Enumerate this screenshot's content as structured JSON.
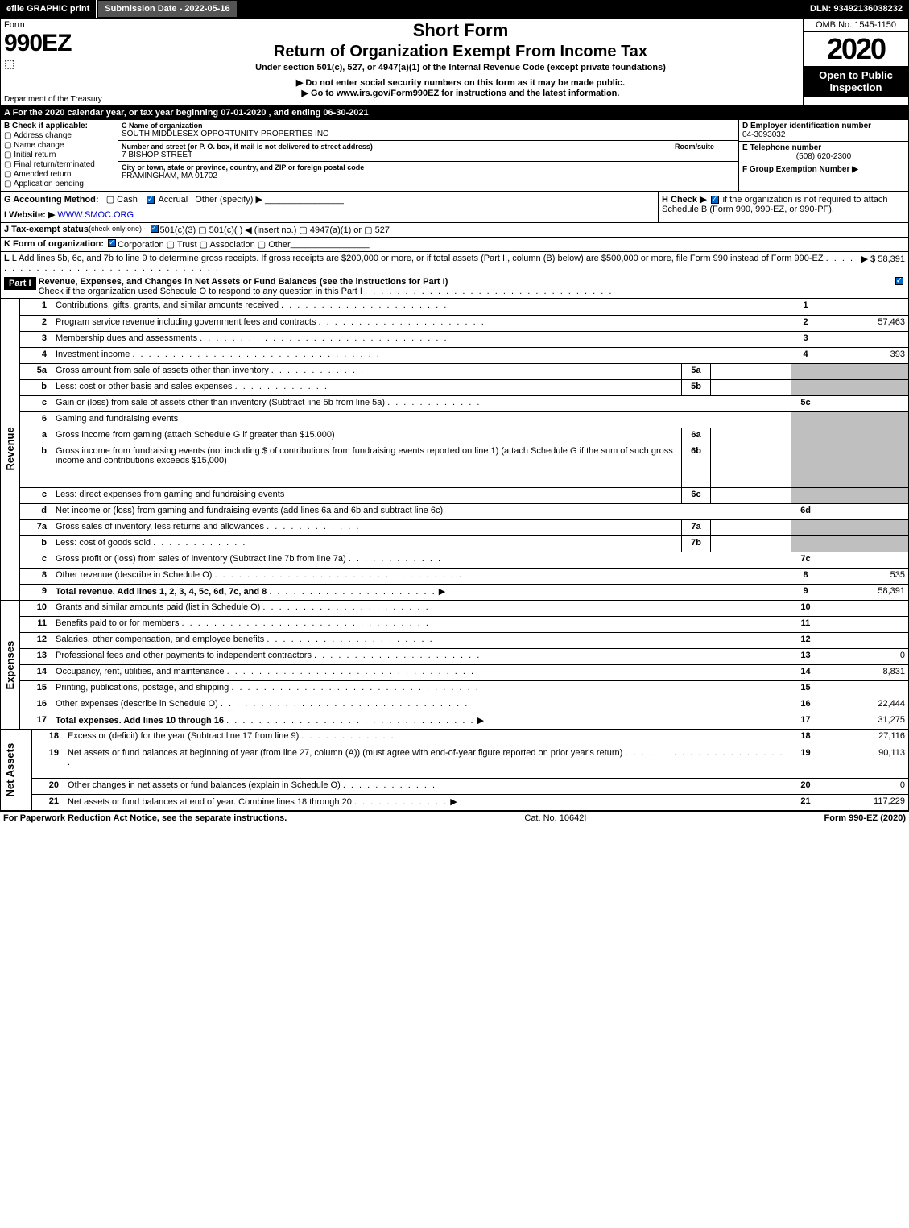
{
  "top_bar": {
    "efile": "efile GRAPHIC print",
    "sub_label": "Submission Date - 2022-05-16",
    "dln": "DLN: 93492136038232"
  },
  "header": {
    "form": "Form",
    "form_num": "990EZ",
    "dept": "Department of the Treasury",
    "irs": "Internal Revenue Service",
    "short": "Short Form",
    "return": "Return of Organization Exempt From Income Tax",
    "under": "Under section 501(c), 527, or 4947(a)(1) of the Internal Revenue Code (except private foundations)",
    "note": "▶ Do not enter social security numbers on this form as it may be made public.",
    "go": "▶ Go to www.irs.gov/Form990EZ for instructions and the latest information.",
    "omb": "OMB No. 1545-1150",
    "year": "2020",
    "open": "Open to Public Inspection"
  },
  "cal": "A For the 2020 calendar year, or tax year beginning 07-01-2020 , and ending 06-30-2021",
  "section_b": {
    "b_label": "B Check if applicable:",
    "checks": [
      "Address change",
      "Name change",
      "Initial return",
      "Final return/terminated",
      "Amended return",
      "Application pending"
    ],
    "c_label": "C Name of organization",
    "c_name": "SOUTH MIDDLESEX OPPORTUNITY PROPERTIES INC",
    "addr_label": "Number and street (or P. O. box, if mail is not delivered to street address)",
    "room_label": "Room/suite",
    "addr": "7 BISHOP STREET",
    "city_label": "City or town, state or province, country, and ZIP or foreign postal code",
    "city": "FRAMINGHAM, MA  01702",
    "d_label": "D Employer identification number",
    "d_val": "04-3093032",
    "e_label": "E Telephone number",
    "e_val": "(508) 620-2300",
    "f_label": "F Group Exemption Number  ▶"
  },
  "section_gh": {
    "g": "G Accounting Method:",
    "g_cash": "Cash",
    "g_acc": "Accrual",
    "g_other": "Other (specify) ▶",
    "h": "H Check ▶",
    "h_txt": "if the organization is not required to attach Schedule B (Form 990, 990-EZ, or 990-PF).",
    "i": "I Website: ▶",
    "i_val": "WWW.SMOC.ORG",
    "j": "J Tax-exempt status",
    "j_sub": "(check only one) -",
    "j_opts": "501(c)(3)   ▢ 501(c)(  ) ◀ (insert no.)   ▢ 4947(a)(1) or   ▢ 527",
    "k": "K Form of organization:",
    "k_opts": "Corporation   ▢ Trust   ▢ Association   ▢ Other",
    "l": "L Add lines 5b, 6c, and 7b to line 9 to determine gross receipts. If gross receipts are $200,000 or more, or if total assets (Part II, column (B) below) are $500,000 or more, file Form 990 instead of Form 990-EZ",
    "l_val": "▶ $ 58,391"
  },
  "part1": {
    "bar": "Part I",
    "title": "Revenue, Expenses, and Changes in Net Assets or Fund Balances (see the instructions for Part I)",
    "check": "Check if the organization used Schedule O to respond to any question in this Part I"
  },
  "rows": [
    {
      "n": "1",
      "d": "Contributions, gifts, grants, and similar amounts received",
      "dots": "d",
      "ln": "1",
      "v": ""
    },
    {
      "n": "2",
      "d": "Program service revenue including government fees and contracts",
      "dots": "d",
      "ln": "2",
      "v": "57,463"
    },
    {
      "n": "3",
      "d": "Membership dues and assessments",
      "dots": "m",
      "ln": "3",
      "v": ""
    },
    {
      "n": "4",
      "d": "Investment income",
      "dots": "m",
      "ln": "4",
      "v": "393"
    },
    {
      "n": "5a",
      "d": "Gross amount from sale of assets other than inventory",
      "dots": "s",
      "mini": "5a",
      "mv": ""
    },
    {
      "n": "b",
      "d": "Less: cost or other basis and sales expenses",
      "dots": "s",
      "mini": "5b",
      "mv": ""
    },
    {
      "n": "c",
      "d": "Gain or (loss) from sale of assets other than inventory (Subtract line 5b from line 5a)",
      "dots": "s",
      "ln": "5c",
      "v": ""
    },
    {
      "n": "6",
      "d": "Gaming and fundraising events",
      "plain": true
    },
    {
      "n": "a",
      "d": "Gross income from gaming (attach Schedule G if greater than $15,000)",
      "mini": "6a",
      "mv": ""
    },
    {
      "n": "b",
      "d": "Gross income from fundraising events (not including $                   of contributions from fundraising events reported on line 1) (attach Schedule G if the sum of such gross income and contributions exceeds $15,000)",
      "dots": "",
      "mini": "6b",
      "mv": "",
      "tall": true
    },
    {
      "n": "c",
      "d": "Less: direct expenses from gaming and fundraising events",
      "dots": "",
      "mini": "6c",
      "mv": ""
    },
    {
      "n": "d",
      "d": "Net income or (loss) from gaming and fundraising events (add lines 6a and 6b and subtract line 6c)",
      "ln": "6d",
      "v": ""
    },
    {
      "n": "7a",
      "d": "Gross sales of inventory, less returns and allowances",
      "dots": "s",
      "mini": "7a",
      "mv": ""
    },
    {
      "n": "b",
      "d": "Less: cost of goods sold",
      "dots": "s",
      "mini": "7b",
      "mv": ""
    },
    {
      "n": "c",
      "d": "Gross profit or (loss) from sales of inventory (Subtract line 7b from line 7a)",
      "dots": "s",
      "ln": "7c",
      "v": ""
    },
    {
      "n": "8",
      "d": "Other revenue (describe in Schedule O)",
      "dots": "m",
      "ln": "8",
      "v": "535"
    },
    {
      "n": "9",
      "d": "Total revenue. Add lines 1, 2, 3, 4, 5c, 6d, 7c, and 8",
      "dots": "d",
      "ln": "9",
      "v": "58,391",
      "bold": true,
      "arr": true
    }
  ],
  "exp_rows": [
    {
      "n": "10",
      "d": "Grants and similar amounts paid (list in Schedule O)",
      "dots": "d",
      "ln": "10",
      "v": ""
    },
    {
      "n": "11",
      "d": "Benefits paid to or for members",
      "dots": "m",
      "ln": "11",
      "v": ""
    },
    {
      "n": "12",
      "d": "Salaries, other compensation, and employee benefits",
      "dots": "d",
      "ln": "12",
      "v": ""
    },
    {
      "n": "13",
      "d": "Professional fees and other payments to independent contractors",
      "dots": "d",
      "ln": "13",
      "v": "0"
    },
    {
      "n": "14",
      "d": "Occupancy, rent, utilities, and maintenance",
      "dots": "m",
      "ln": "14",
      "v": "8,831"
    },
    {
      "n": "15",
      "d": "Printing, publications, postage, and shipping",
      "dots": "m",
      "ln": "15",
      "v": ""
    },
    {
      "n": "16",
      "d": "Other expenses (describe in Schedule O)",
      "dots": "m",
      "ln": "16",
      "v": "22,444"
    },
    {
      "n": "17",
      "d": "Total expenses. Add lines 10 through 16",
      "dots": "m",
      "ln": "17",
      "v": "31,275",
      "bold": true,
      "arr": true
    }
  ],
  "na_rows": [
    {
      "n": "18",
      "d": "Excess or (deficit) for the year (Subtract line 17 from line 9)",
      "dots": "s",
      "ln": "18",
      "v": "27,116"
    },
    {
      "n": "19",
      "d": "Net assets or fund balances at beginning of year (from line 27, column (A)) (must agree with end-of-year figure reported on prior year's return)",
      "dots": "d",
      "ln": "19",
      "v": "90,113",
      "tall": true
    },
    {
      "n": "20",
      "d": "Other changes in net assets or fund balances (explain in Schedule O)",
      "dots": "s",
      "ln": "20",
      "v": "0"
    },
    {
      "n": "21",
      "d": "Net assets or fund balances at end of year. Combine lines 18 through 20",
      "dots": "s",
      "ln": "21",
      "v": "117,229",
      "arr": true
    }
  ],
  "side_labels": {
    "rev": "Revenue",
    "exp": "Expenses",
    "na": "Net Assets"
  },
  "footer": {
    "left": "For Paperwork Reduction Act Notice, see the separate instructions.",
    "mid": "Cat. No. 10642I",
    "right": "Form 990-EZ (2020)"
  }
}
